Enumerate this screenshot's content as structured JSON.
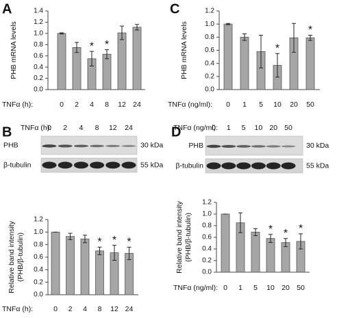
{
  "chart_data": [
    {
      "type": "bar",
      "panel": "A",
      "y_label": [
        "PHB mRNA levels"
      ],
      "x_label": "TNFα (h):",
      "categories": [
        "0",
        "2",
        "4",
        "8",
        "12",
        "24"
      ],
      "values": [
        1.0,
        0.75,
        0.55,
        0.63,
        1.01,
        1.11
      ],
      "errors": [
        0.01,
        0.09,
        0.13,
        0.08,
        0.12,
        0.05
      ],
      "annotations": [
        {
          "category": "4",
          "text": "*"
        },
        {
          "category": "8",
          "text": "*"
        }
      ],
      "color": "#a6a6a6",
      "ylim": [
        0,
        1.4
      ],
      "yticks": [
        {
          "value": 0,
          "label": "0.0"
        },
        0.2,
        0.4,
        0.6,
        0.8,
        {
          "value": 1,
          "label": "1.0"
        },
        1.2,
        1.4
      ]
    },
    {
      "type": "bar",
      "y_label": [
        "Relative band intensity",
        "(PHB/β-tubulin)"
      ],
      "x_label": "TNFα (h):",
      "categories": [
        "0",
        "2",
        "4",
        "8",
        "12",
        "24"
      ],
      "values": [
        1.0,
        0.93,
        0.89,
        0.7,
        0.67,
        0.66
      ],
      "errors": [
        0,
        0.05,
        0.06,
        0.06,
        0.12,
        0.1
      ],
      "annotations": [
        {
          "category": "8",
          "text": "*"
        },
        {
          "category": "12",
          "text": "*"
        },
        {
          "category": "24",
          "text": "*"
        }
      ],
      "color": "#a6a6a6",
      "ylim": [
        0,
        1.2
      ],
      "yticks": [
        {
          "value": 0,
          "label": "0.0"
        },
        0.2,
        0.4,
        0.6,
        0.8,
        {
          "value": 1,
          "label": "1.0"
        },
        1.2
      ]
    },
    {
      "type": "bar",
      "panel": "C",
      "y_label": [
        "PHB mRNA levels"
      ],
      "x_label": "TNFα (ng/ml):",
      "categories": [
        "0",
        "1",
        "5",
        "10",
        "20",
        "50"
      ],
      "values": [
        1.0,
        0.8,
        0.58,
        0.37,
        0.79,
        0.79
      ],
      "errors": [
        0.01,
        0.05,
        0.25,
        0.18,
        0.22,
        0.04
      ],
      "annotations": [
        {
          "category": "10",
          "text": "*"
        },
        {
          "category": "50",
          "text": "*"
        }
      ],
      "color": "#a6a6a6",
      "ylim": [
        0,
        1.2
      ],
      "yticks": [
        {
          "value": 0,
          "label": "0.0"
        },
        0.2,
        0.4,
        0.6,
        0.8,
        {
          "value": 1,
          "label": "1.0"
        },
        1.2
      ]
    },
    {
      "type": "bar",
      "y_label": [
        "Relative band intensity",
        "(PHB/β-tubulin)"
      ],
      "x_label": "TNFα (ng/ml):",
      "categories": [
        "0",
        "1",
        "5",
        "10",
        "20",
        "50"
      ],
      "values": [
        1.0,
        0.85,
        0.69,
        0.58,
        0.51,
        0.53
      ],
      "errors": [
        0,
        0.17,
        0.06,
        0.07,
        0.07,
        0.13
      ],
      "annotations": [
        {
          "category": "10",
          "text": "*"
        },
        {
          "category": "20",
          "text": "*"
        },
        {
          "category": "50",
          "text": "*"
        }
      ],
      "color": "#a6a6a6",
      "ylim": [
        0,
        1.2
      ],
      "yticks": [
        {
          "value": 0,
          "label": "0.0"
        },
        0.2,
        0.4,
        0.6,
        0.8,
        {
          "value": 1,
          "label": "1.0"
        },
        1.2
      ]
    }
  ],
  "blots": [
    {
      "panel": "B",
      "x_label": "TNFα (h):",
      "lanes": [
        "0",
        "2",
        "4",
        "8",
        "12",
        "24"
      ],
      "rows": [
        {
          "name": "PHB",
          "size": "30 kDa"
        },
        {
          "name": "β-tubulin",
          "size": "55 kDa"
        }
      ]
    },
    {
      "panel": "D",
      "x_label": "TNFα (ng/ml):",
      "lanes": [
        "0",
        "1",
        "5",
        "10",
        "20",
        "50"
      ],
      "rows": [
        {
          "name": "PHB",
          "size": "30 kDa"
        },
        {
          "name": "β-tubulin",
          "size": "55 kDa"
        }
      ]
    }
  ]
}
